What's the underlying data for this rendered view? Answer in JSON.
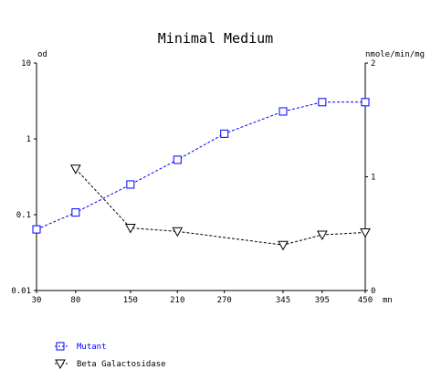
{
  "chart_data": {
    "type": "line",
    "title": "Minimal Medium",
    "xlabel": "mn",
    "x_ticks": [
      "30",
      "80",
      "150",
      "210",
      "270",
      "345",
      "395",
      "450"
    ],
    "y_left": {
      "label": "od",
      "scale": "log",
      "range": [
        0.01,
        10
      ],
      "ticks": [
        "10",
        "1",
        "0.1",
        "0.01"
      ],
      "tick_values": [
        10,
        1,
        0.1,
        0.01
      ]
    },
    "y_right": {
      "label": "nmole/min/mg",
      "scale": "linear",
      "range": [
        0,
        2
      ],
      "ticks": [
        "2",
        "1",
        "0"
      ],
      "tick_values": [
        2,
        1,
        0
      ]
    },
    "grid": false,
    "legend_position": "bottom-left",
    "series": [
      {
        "name": "Mutant",
        "axis": "left",
        "color": "#0000ff",
        "marker": "square",
        "x": [
          30,
          80,
          150,
          210,
          270,
          345,
          395,
          450
        ],
        "y": [
          0.064,
          0.107,
          0.25,
          0.53,
          1.17,
          2.3,
          3.05,
          3.05
        ]
      },
      {
        "name": "Beta Galactosidase",
        "axis": "right",
        "color": "#000000",
        "marker": "triangle-down",
        "x": [
          80,
          150,
          210,
          345,
          395,
          450
        ],
        "y": [
          1.07,
          0.55,
          0.52,
          0.4,
          0.49,
          0.51
        ]
      }
    ]
  }
}
